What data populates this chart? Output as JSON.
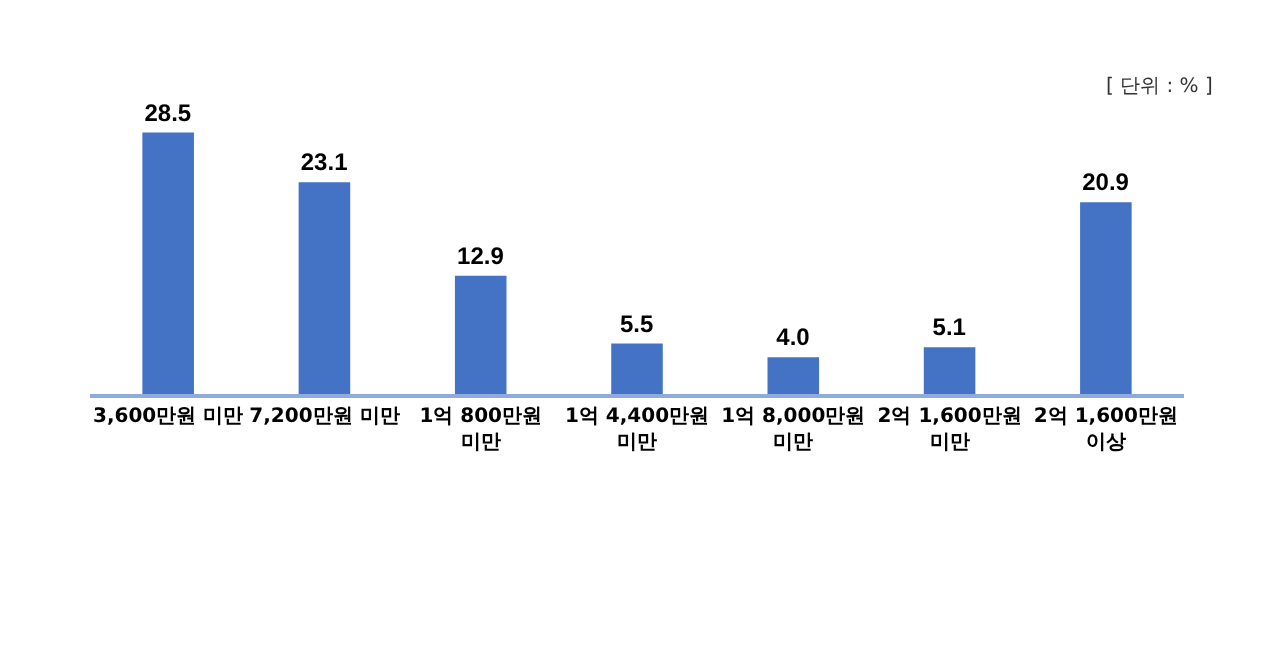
{
  "chart_data": {
    "type": "bar",
    "categories": [
      "3,600만원 미만",
      "7,200만원 미만",
      "1억 800만원\n미만",
      "1억 4,400만원\n미만",
      "1억 8,000만원\n미만",
      "2억 1,600만원\n미만",
      "2억 1,600만원\n이상"
    ],
    "values": [
      28.5,
      23.1,
      12.9,
      5.5,
      4.0,
      5.1,
      20.9
    ],
    "value_labels": [
      "28.5",
      "23.1",
      "12.9",
      "5.5",
      "4.0",
      "5.1",
      "20.9"
    ],
    "color": "#4472c4",
    "annotations": [
      "[ 단위 : % ]"
    ]
  }
}
